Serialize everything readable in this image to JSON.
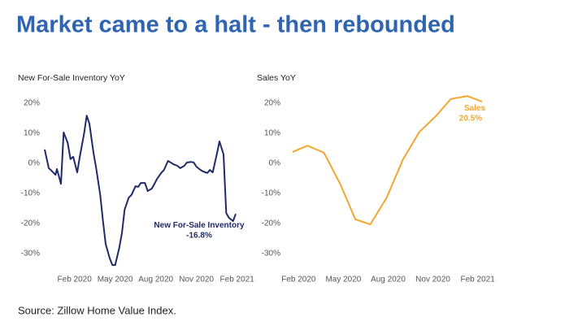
{
  "title": "Market came to a halt - then rebounded",
  "source": "Source: Zillow Home Value Index.",
  "chart_data": [
    {
      "type": "line",
      "title": "New For-Sale Inventory YoY",
      "color": "#1f2a68",
      "x": [
        -1.2,
        -0.9,
        -0.7,
        -0.4,
        -0.3,
        0.0,
        0.2,
        0.5,
        0.7,
        0.9,
        1.2,
        1.4,
        1.7,
        1.9,
        2.1,
        2.4,
        2.6,
        2.9,
        3.1,
        3.3,
        3.6,
        3.8,
        4.0,
        4.3,
        4.5,
        4.7,
        5.0,
        5.2,
        5.5,
        5.7,
        5.9,
        6.2,
        6.4,
        6.7,
        6.9,
        7.1,
        7.4,
        7.6,
        7.9,
        8.1,
        8.3,
        8.6,
        8.8,
        9.1,
        9.3,
        9.6,
        9.8,
        10.0,
        10.3,
        10.5,
        10.8,
        11.0,
        11.2,
        11.5,
        11.7,
        12.0,
        12.2,
        12.4,
        12.7,
        12.9
      ],
      "values": [
        4.6,
        -1.6,
        -2.4,
        -3.8,
        -1.9,
        -6.8,
        10.3,
        6.8,
        1.4,
        2.2,
        -3.0,
        2.4,
        9.7,
        15.9,
        13.2,
        3.5,
        -1.6,
        -10.5,
        -19.2,
        -26.8,
        -31.6,
        -33.8,
        -33.8,
        -28.1,
        -23.2,
        -15.4,
        -11.4,
        -10.5,
        -7.6,
        -7.8,
        -6.5,
        -6.5,
        -9.2,
        -8.4,
        -6.8,
        -5.1,
        -3.2,
        -2.2,
        0.8,
        0.3,
        -0.3,
        -0.8,
        -1.6,
        -0.8,
        0.3,
        0.5,
        0.3,
        -1.1,
        -2.2,
        -2.7,
        -3.2,
        -2.2,
        -3.0,
        3.0,
        7.3,
        3.0,
        -16.5,
        -18.1,
        -19.2,
        -16.8
      ],
      "xlim": [
        -1.5,
        13.5
      ],
      "xticks": [
        {
          "value": 1,
          "label": "Feb 2020"
        },
        {
          "value": 4,
          "label": "May 2020"
        },
        {
          "value": 7,
          "label": "Aug 2020"
        },
        {
          "value": 10,
          "label": "Nov 2020"
        },
        {
          "value": 13,
          "label": "Feb 2021"
        }
      ],
      "ylim": [
        -35,
        25
      ],
      "yticks": [
        {
          "value": 20,
          "label": "20%"
        },
        {
          "value": 10,
          "label": "10%"
        },
        {
          "value": 0,
          "label": "0%"
        },
        {
          "value": -10,
          "label": "-10%"
        },
        {
          "value": -20,
          "label": "-20%"
        },
        {
          "value": -30,
          "label": "-30%"
        }
      ],
      "annotation": [
        "New For-Sale Inventory",
        "-16.8%"
      ]
    },
    {
      "type": "line",
      "title": "Sales YoY",
      "color": "#f2a731",
      "x": [
        0.6,
        1.6,
        2.7,
        3.8,
        4.8,
        5.8,
        6.9,
        8.0,
        9.1,
        10.2,
        11.2,
        12.3,
        13.3
      ],
      "values": [
        3.8,
        5.9,
        3.5,
        -7.0,
        -18.6,
        -20.3,
        -11.4,
        1.4,
        10.5,
        15.7,
        21.4,
        22.4,
        20.5
      ],
      "xlim": [
        0,
        14
      ],
      "xticks": [
        {
          "value": 1,
          "label": "Feb 2020"
        },
        {
          "value": 4,
          "label": "May 2020"
        },
        {
          "value": 7,
          "label": "Aug 2020"
        },
        {
          "value": 10,
          "label": "Nov 2020"
        },
        {
          "value": 13,
          "label": "Feb 2021"
        }
      ],
      "ylim": [
        -35,
        25
      ],
      "yticks": [
        {
          "value": 20,
          "label": "20%"
        },
        {
          "value": 10,
          "label": "10%"
        },
        {
          "value": 0,
          "label": "0%"
        },
        {
          "value": -10,
          "label": "-10%"
        },
        {
          "value": -20,
          "label": "-20%"
        },
        {
          "value": -30,
          "label": "-30%"
        }
      ],
      "annotation": [
        "Sales",
        "20.5%"
      ]
    }
  ]
}
